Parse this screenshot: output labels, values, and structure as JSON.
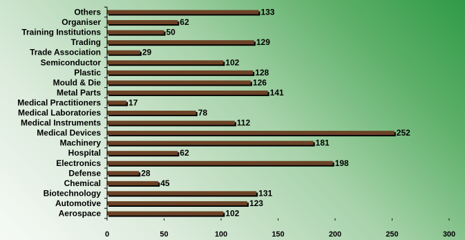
{
  "chart_data": {
    "type": "bar",
    "orientation": "horizontal",
    "categories": [
      "Others",
      "Organiser",
      "Training Institutions",
      "Trading",
      "Trade Association",
      "Semiconductor",
      "Plastic",
      "Mould & Die",
      "Metal Parts",
      "Medical Practitioners",
      "Medical Laboratories",
      "Medical Instruments",
      "Medical Devices",
      "Machinery",
      "Hospital",
      "Electronics",
      "Defense",
      "Chemical",
      "Biotechnology",
      "Automotive",
      "Aerospace"
    ],
    "values": [
      133,
      62,
      50,
      129,
      29,
      102,
      128,
      126,
      141,
      17,
      78,
      112,
      252,
      181,
      62,
      198,
      28,
      45,
      131,
      123,
      102
    ],
    "xlim": [
      0,
      300
    ],
    "xticks": [
      0,
      50,
      100,
      150,
      200,
      250,
      300
    ],
    "title": "",
    "xlabel": "",
    "ylabel": "",
    "grid": false,
    "colors": {
      "bar": "#6b4226",
      "bar_shadow": "#000000"
    }
  }
}
